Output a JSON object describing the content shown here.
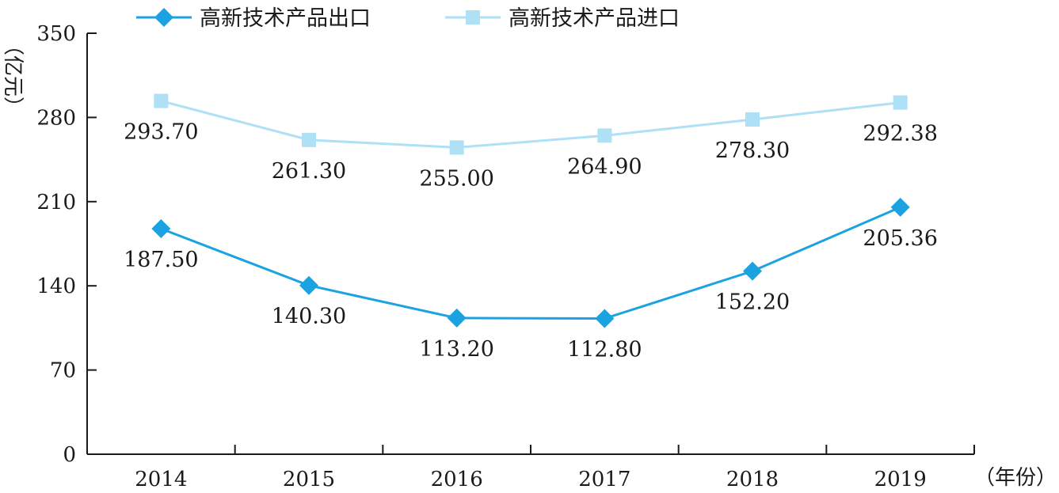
{
  "chart_data": {
    "type": "line",
    "categories": [
      "2014",
      "2015",
      "2016",
      "2017",
      "2018",
      "2019"
    ],
    "series": [
      {
        "name": "高新技术产品出口",
        "values": [
          187.5,
          140.3,
          113.2,
          112.8,
          152.2,
          205.36
        ],
        "labels": [
          "187.50",
          "140.30",
          "113.20",
          "112.80",
          "152.20",
          "205.36"
        ],
        "color": "#1aa3e0",
        "marker": "diamond"
      },
      {
        "name": "高新技术产品进口",
        "values": [
          293.7,
          261.3,
          255.0,
          264.9,
          278.3,
          292.38
        ],
        "labels": [
          "293.70",
          "261.30",
          "255.00",
          "264.90",
          "278.30",
          "292.38"
        ],
        "color": "#aee0f6",
        "marker": "square"
      }
    ],
    "yticks": [
      "0",
      "70",
      "140",
      "210",
      "280",
      "350"
    ],
    "ylim": [
      0,
      350
    ],
    "ylabel": "（亿元）",
    "xlabel": "（年份）",
    "legend_position": "top",
    "grid": false
  }
}
